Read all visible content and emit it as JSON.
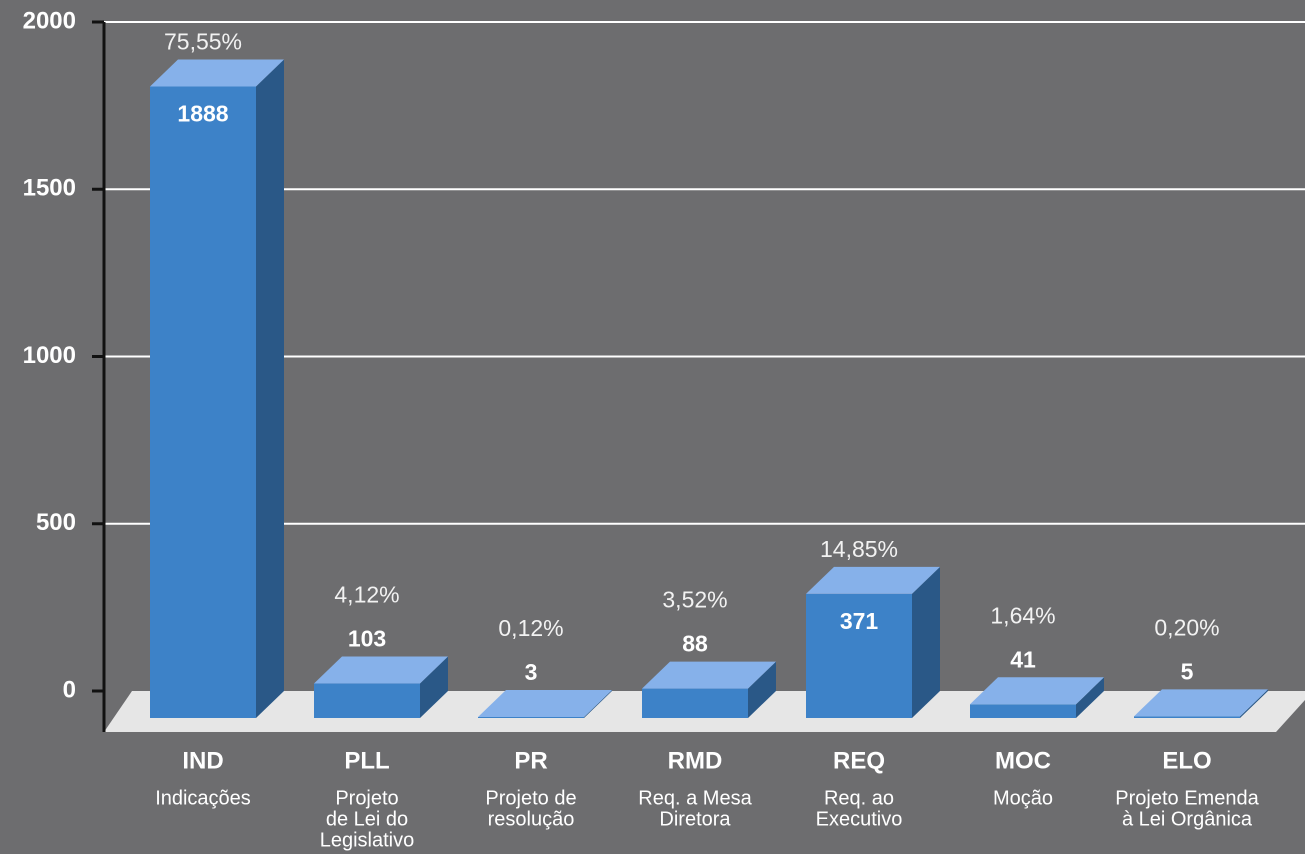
{
  "chart_data": {
    "type": "bar3d",
    "categories": [
      "IND",
      "PLL",
      "PR",
      "RMD",
      "REQ",
      "MOC",
      "ELO"
    ],
    "descriptions": [
      [
        "Indicações"
      ],
      [
        "Projeto",
        "de Lei do",
        "Legislativo"
      ],
      [
        "Projeto de",
        "resolução"
      ],
      [
        "Req. a Mesa",
        "Diretora"
      ],
      [
        "Req. ao",
        "Executivo"
      ],
      [
        "Moção"
      ],
      [
        "Projeto Emenda",
        "à Lei Orgânica"
      ]
    ],
    "values": [
      1888,
      103,
      3,
      88,
      371,
      41,
      5
    ],
    "percentage_labels": [
      "75,55%",
      "4,12%",
      "0,12%",
      "3,52%",
      "14,85%",
      "1,64%",
      "0,20%"
    ],
    "color": "#3d82c8",
    "ylim": [
      0,
      2000
    ],
    "yticks": [
      0,
      500,
      1000,
      1500,
      2000
    ],
    "grid": true
  }
}
